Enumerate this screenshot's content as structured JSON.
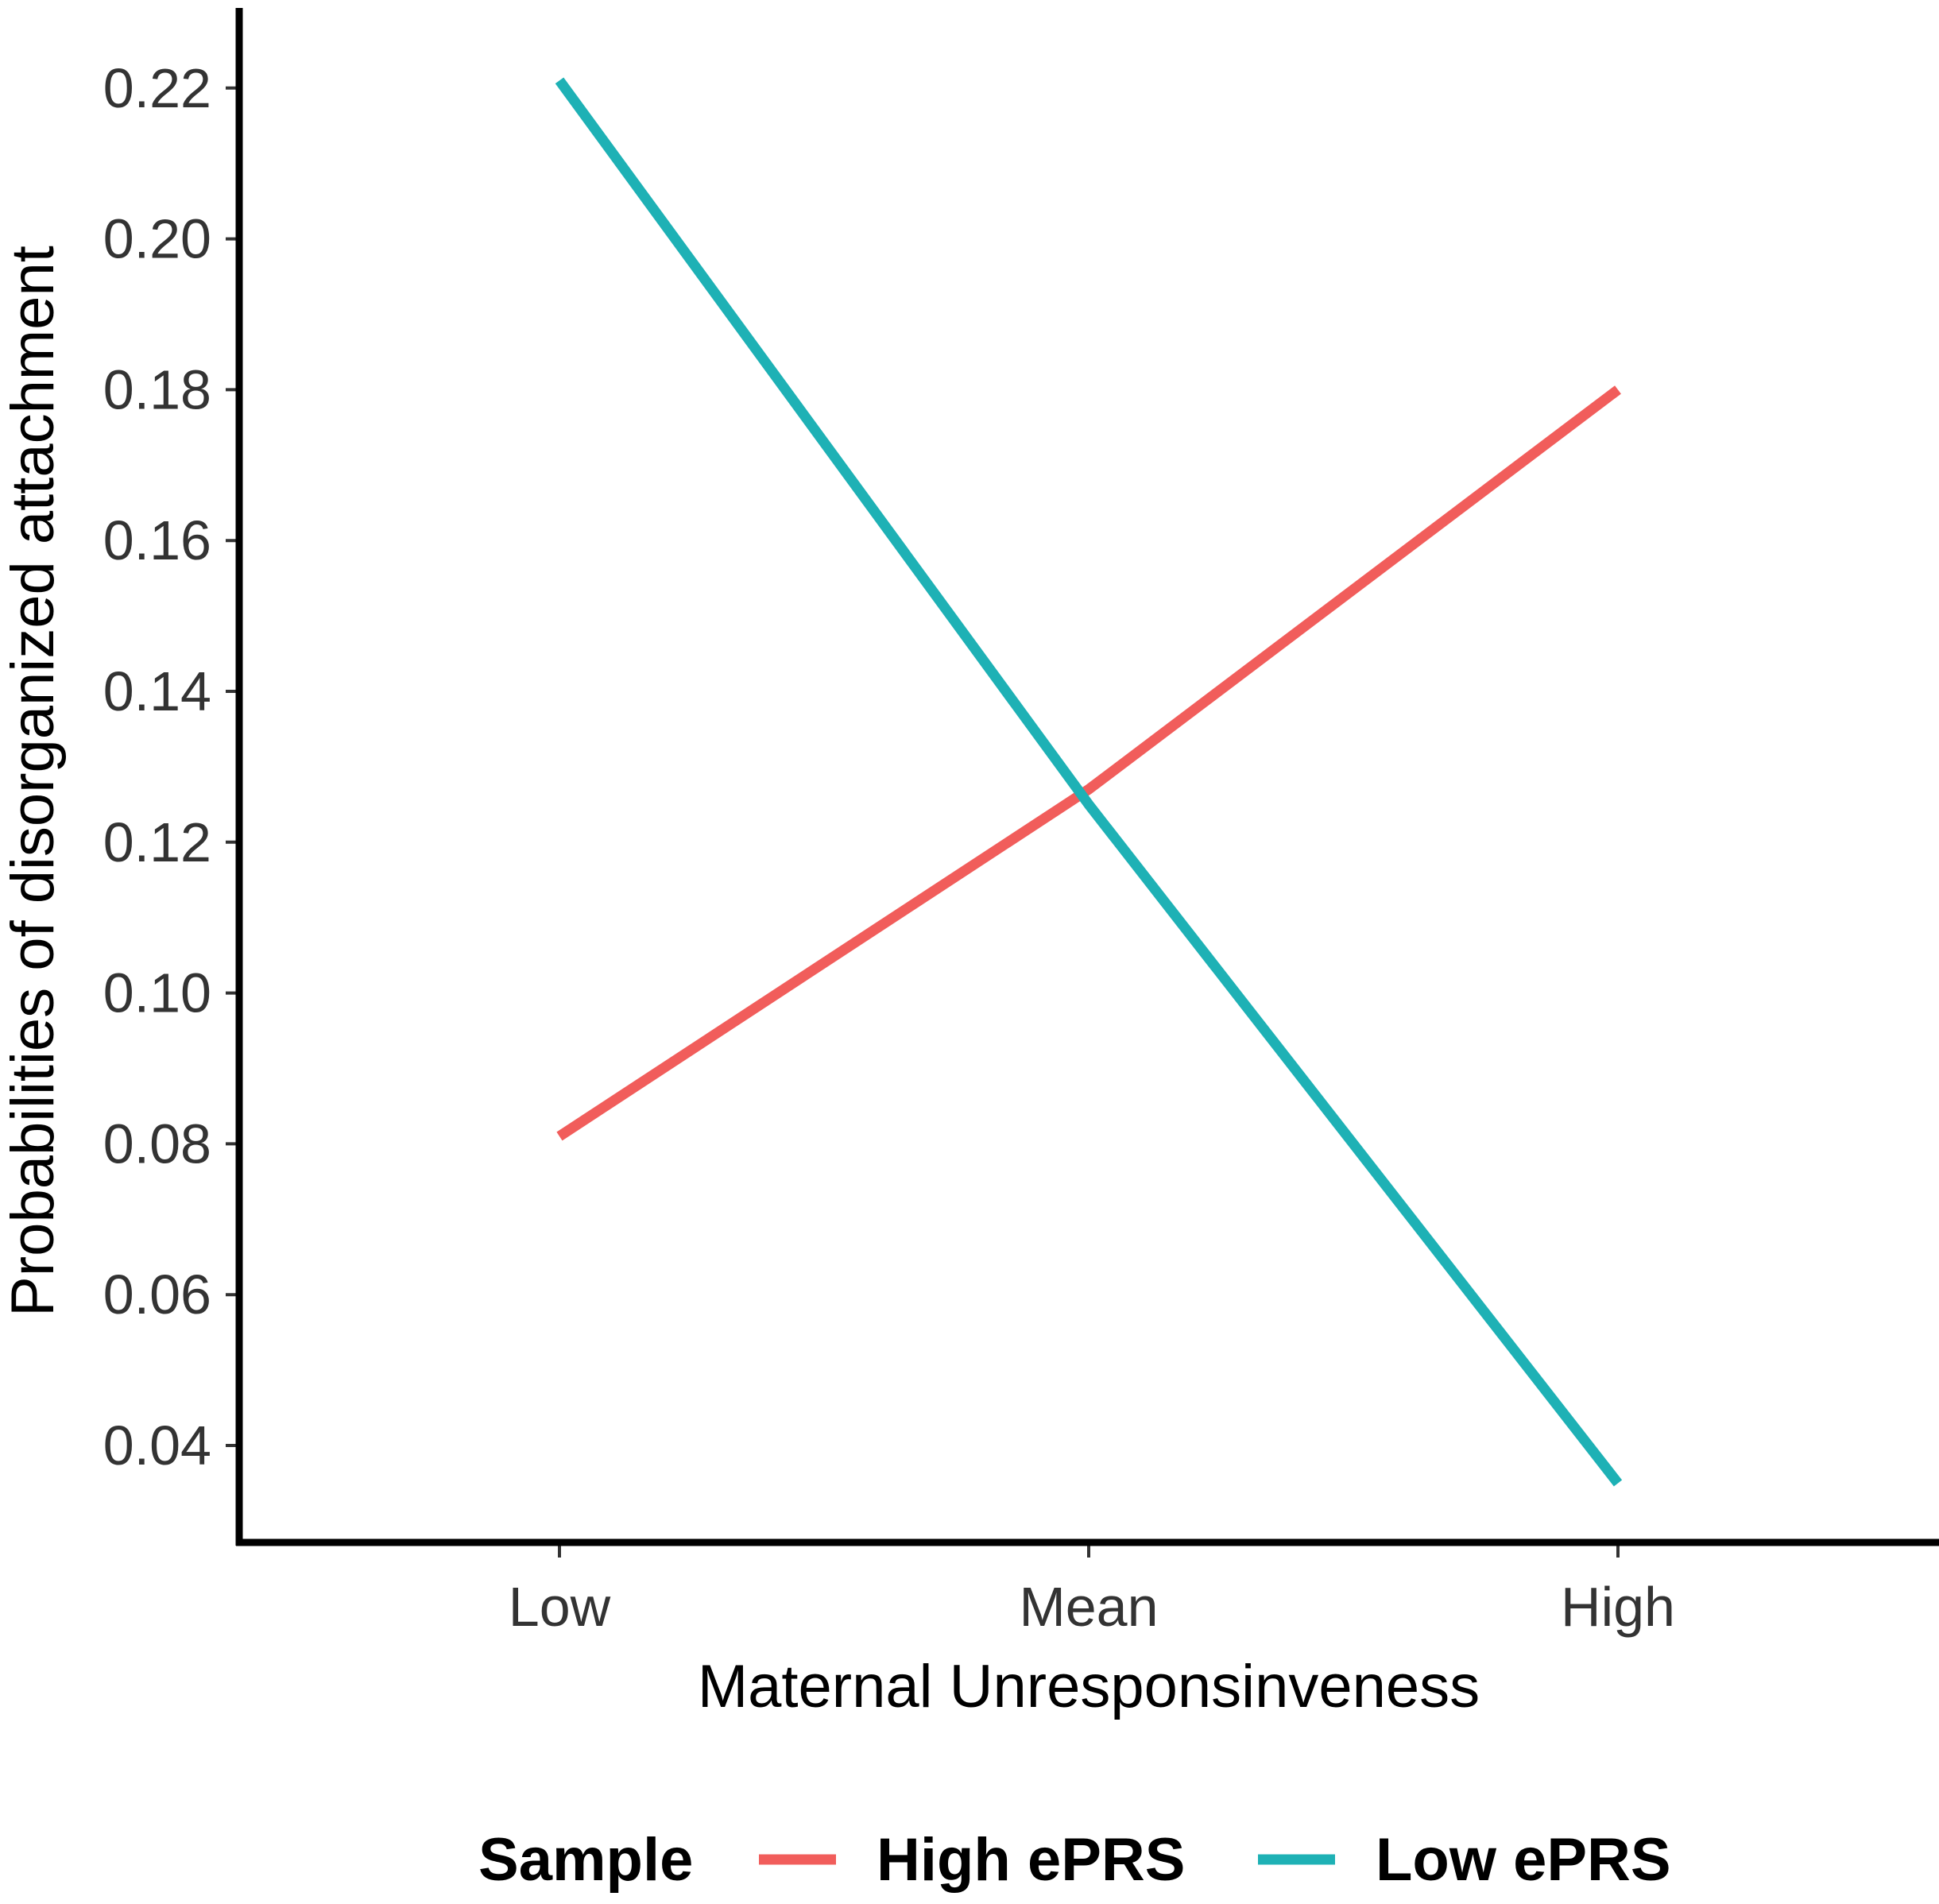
{
  "chart_data": {
    "type": "line",
    "title": "",
    "xlabel": "Maternal Unresponsinveness",
    "ylabel": "Probabilities of disorganized attachment",
    "categories": [
      "Low",
      "Mean",
      "High"
    ],
    "ylim": [
      0.03,
      0.23
    ],
    "yticks": [
      "0.04",
      "0.06",
      "0.08",
      "0.10",
      "0.12",
      "0.14",
      "0.16",
      "0.18",
      "0.20",
      "0.22"
    ],
    "grid": false,
    "legend": {
      "title": "Sample",
      "position": "bottom"
    },
    "series": [
      {
        "name": "High ePRS",
        "color": "#F15D5B",
        "values": [
          0.081,
          0.127,
          0.18
        ]
      },
      {
        "name": "Low ePRS",
        "color": "#1EB1B5",
        "values": [
          0.221,
          0.125,
          0.035
        ]
      }
    ]
  }
}
